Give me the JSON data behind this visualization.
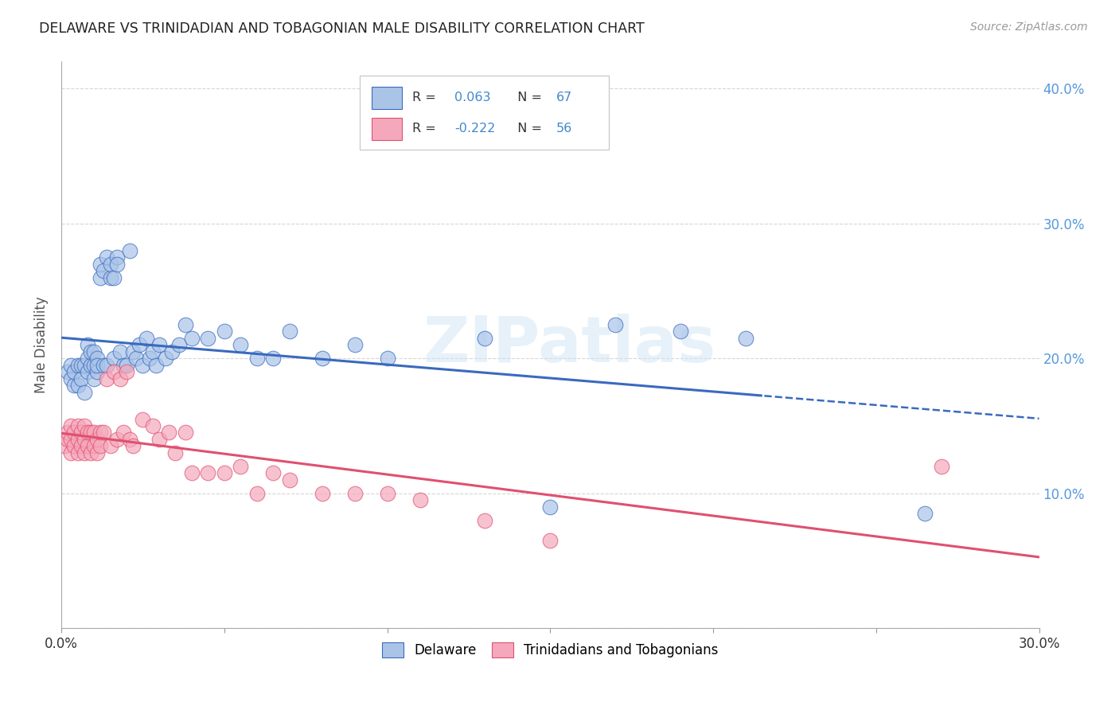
{
  "title": "DELAWARE VS TRINIDADIAN AND TOBAGONIAN MALE DISABILITY CORRELATION CHART",
  "source": "Source: ZipAtlas.com",
  "ylabel": "Male Disability",
  "xlim": [
    0.0,
    0.3
  ],
  "ylim": [
    0.0,
    0.42
  ],
  "x_ticks": [
    0.0,
    0.05,
    0.1,
    0.15,
    0.2,
    0.25,
    0.3
  ],
  "y_ticks": [
    0.0,
    0.1,
    0.2,
    0.3,
    0.4
  ],
  "x_tick_labels_bottom": [
    "0.0%",
    "",
    "",
    "",
    "",
    "",
    "30.0%"
  ],
  "y_tick_labels_right": [
    "",
    "10.0%",
    "20.0%",
    "30.0%",
    "40.0%"
  ],
  "legend_labels": [
    "Delaware",
    "Trinidadians and Tobagonians"
  ],
  "R_delaware": 0.063,
  "N_delaware": 67,
  "R_trinidad": -0.222,
  "N_trinidad": 56,
  "delaware_color": "#aac4e8",
  "trinidad_color": "#f5a8bb",
  "trend_delaware_color": "#3a6abf",
  "trend_trinidad_color": "#e05070",
  "watermark": "ZIPatlas",
  "delaware_x": [
    0.002,
    0.003,
    0.003,
    0.004,
    0.004,
    0.005,
    0.005,
    0.006,
    0.006,
    0.007,
    0.007,
    0.008,
    0.008,
    0.008,
    0.009,
    0.009,
    0.01,
    0.01,
    0.01,
    0.011,
    0.011,
    0.011,
    0.012,
    0.012,
    0.013,
    0.013,
    0.014,
    0.014,
    0.015,
    0.015,
    0.016,
    0.016,
    0.017,
    0.017,
    0.018,
    0.019,
    0.02,
    0.021,
    0.022,
    0.023,
    0.024,
    0.025,
    0.026,
    0.027,
    0.028,
    0.029,
    0.03,
    0.032,
    0.034,
    0.036,
    0.038,
    0.04,
    0.045,
    0.05,
    0.055,
    0.06,
    0.065,
    0.07,
    0.08,
    0.09,
    0.1,
    0.13,
    0.15,
    0.17,
    0.19,
    0.21,
    0.265
  ],
  "delaware_y": [
    0.19,
    0.185,
    0.195,
    0.18,
    0.19,
    0.18,
    0.195,
    0.185,
    0.195,
    0.175,
    0.195,
    0.19,
    0.2,
    0.21,
    0.195,
    0.205,
    0.185,
    0.195,
    0.205,
    0.2,
    0.19,
    0.195,
    0.26,
    0.27,
    0.195,
    0.265,
    0.195,
    0.275,
    0.26,
    0.27,
    0.26,
    0.2,
    0.275,
    0.27,
    0.205,
    0.195,
    0.195,
    0.28,
    0.205,
    0.2,
    0.21,
    0.195,
    0.215,
    0.2,
    0.205,
    0.195,
    0.21,
    0.2,
    0.205,
    0.21,
    0.225,
    0.215,
    0.215,
    0.22,
    0.21,
    0.2,
    0.2,
    0.22,
    0.2,
    0.21,
    0.2,
    0.215,
    0.09,
    0.225,
    0.22,
    0.215,
    0.085
  ],
  "trinidad_x": [
    0.001,
    0.002,
    0.002,
    0.003,
    0.003,
    0.003,
    0.004,
    0.004,
    0.005,
    0.005,
    0.005,
    0.006,
    0.006,
    0.007,
    0.007,
    0.007,
    0.008,
    0.008,
    0.009,
    0.009,
    0.01,
    0.01,
    0.011,
    0.011,
    0.012,
    0.012,
    0.013,
    0.014,
    0.015,
    0.016,
    0.017,
    0.018,
    0.019,
    0.02,
    0.021,
    0.022,
    0.025,
    0.028,
    0.03,
    0.033,
    0.035,
    0.038,
    0.04,
    0.045,
    0.05,
    0.055,
    0.06,
    0.065,
    0.07,
    0.08,
    0.09,
    0.1,
    0.11,
    0.13,
    0.15,
    0.27
  ],
  "trinidad_y": [
    0.135,
    0.14,
    0.145,
    0.13,
    0.14,
    0.15,
    0.135,
    0.145,
    0.13,
    0.14,
    0.15,
    0.135,
    0.145,
    0.13,
    0.14,
    0.15,
    0.135,
    0.145,
    0.13,
    0.145,
    0.135,
    0.145,
    0.13,
    0.14,
    0.135,
    0.145,
    0.145,
    0.185,
    0.135,
    0.19,
    0.14,
    0.185,
    0.145,
    0.19,
    0.14,
    0.135,
    0.155,
    0.15,
    0.14,
    0.145,
    0.13,
    0.145,
    0.115,
    0.115,
    0.115,
    0.12,
    0.1,
    0.115,
    0.11,
    0.1,
    0.1,
    0.1,
    0.095,
    0.08,
    0.065,
    0.12
  ]
}
